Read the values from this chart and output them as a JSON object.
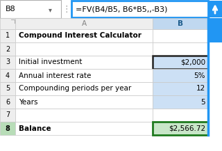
{
  "formula_bar_cell": "B8",
  "formula_bar_text": "=FV(B4/B5, B6*B5,,-B3)",
  "col_a_header": "A",
  "col_b_header": "B",
  "rows": [
    {
      "row": 1,
      "a": "Compound Interest Calculator",
      "b": "",
      "a_bold": true
    },
    {
      "row": 2,
      "a": "",
      "b": "",
      "a_bold": false
    },
    {
      "row": 3,
      "a": "Initial investment",
      "b": "$2,000",
      "a_bold": false
    },
    {
      "row": 4,
      "a": "Annual interest rate",
      "b": "5%",
      "a_bold": false
    },
    {
      "row": 5,
      "a": "Compounding periods per year",
      "b": "12",
      "a_bold": false
    },
    {
      "row": 6,
      "a": "Years",
      "b": "5",
      "a_bold": false
    },
    {
      "row": 7,
      "a": "",
      "b": "",
      "a_bold": false
    },
    {
      "row": 8,
      "a": "Balance",
      "b": "$2,566.72",
      "a_bold": true
    }
  ],
  "bg_color": "#ffffff",
  "header_bg": "#eeeeee",
  "row_num_bg": "#eeeeee",
  "formula_border": "#2196f3",
  "cell_b3_border": "#222222",
  "cell_b8_border": "#1e7a1e",
  "col_b_highlight": "#cce0f5",
  "col_b_header_bg": "#c0d8f0",
  "row8_num_bg": "#b8ddb8",
  "row8_col_b_bg": "#c8e6c8",
  "grid_color": "#c8c8c8",
  "text_color": "#000000",
  "header_text_color": "#808080",
  "blue_arrow_bg": "#2196f3",
  "row1_merged_bg": "#ffffff"
}
